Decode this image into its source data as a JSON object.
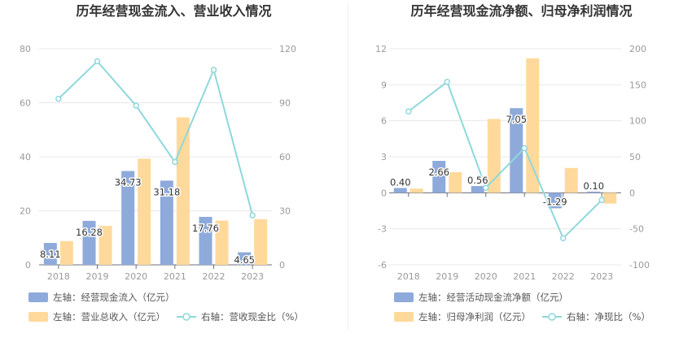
{
  "chart_data": [
    {
      "type": "bar",
      "title": "历年经营现金流入、营业收入情况",
      "categories": [
        "2018",
        "2019",
        "2020",
        "2021",
        "2022",
        "2023"
      ],
      "y_left": {
        "ylim": [
          0,
          80
        ],
        "ticks": [
          "0",
          "20",
          "40",
          "60",
          "80"
        ]
      },
      "y_right": {
        "ylim": [
          0,
          120
        ],
        "ticks": [
          "0",
          "30",
          "60",
          "90",
          "120"
        ]
      },
      "series": [
        {
          "name": "左轴：经营现金流入（亿元）",
          "type": "bar",
          "axis": "left",
          "color": "#8eaadb",
          "values": [
            8.11,
            16.28,
            34.73,
            31.18,
            17.76,
            4.65
          ],
          "labels": [
            "8.11",
            "16.28",
            "34.73",
            "31.18",
            "17.76",
            "4.65"
          ]
        },
        {
          "name": "左轴：营业总收入（亿元）",
          "type": "bar",
          "axis": "left",
          "color": "#ffd99b",
          "values": [
            8.8,
            14.4,
            39.3,
            54.6,
            16.4,
            16.9
          ]
        },
        {
          "name": "右轴：营收现金比（%）",
          "type": "line",
          "axis": "right",
          "color": "#8fd8dc",
          "values": [
            92.2,
            113.0,
            88.4,
            57.1,
            108.3,
            27.5
          ]
        }
      ],
      "legend_position": "bottom-left"
    },
    {
      "type": "bar",
      "title": "历年经营现金流净额、归母净利润情况",
      "categories": [
        "2018",
        "2019",
        "2020",
        "2021",
        "2022",
        "2023"
      ],
      "y_left": {
        "ylim": [
          -6,
          12
        ],
        "ticks": [
          "-6",
          "-3",
          "0",
          "3",
          "6",
          "9",
          "12"
        ]
      },
      "y_right": {
        "ylim": [
          -100,
          200
        ],
        "ticks": [
          "-100",
          "-50",
          "0",
          "50",
          "100",
          "150",
          "200"
        ]
      },
      "series": [
        {
          "name": "左轴：经营活动现金流净额（亿元）",
          "type": "bar",
          "axis": "left",
          "color": "#8eaadb",
          "values": [
            0.4,
            2.66,
            0.56,
            7.05,
            -1.29,
            0.1
          ],
          "labels": [
            "0.40",
            "2.66",
            "0.56",
            "7.05",
            "-1.29",
            "0.10"
          ]
        },
        {
          "name": "左轴：归母净利润（亿元）",
          "type": "bar",
          "axis": "left",
          "color": "#ffd99b",
          "values": [
            0.35,
            1.72,
            6.15,
            11.2,
            2.07,
            -0.9
          ]
        },
        {
          "name": "右轴：净现比（%）",
          "type": "line",
          "axis": "right",
          "color": "#8fd8dc",
          "values": [
            113,
            154,
            7,
            62,
            -63,
            -10
          ]
        }
      ],
      "legend_position": "bottom-left"
    }
  ]
}
